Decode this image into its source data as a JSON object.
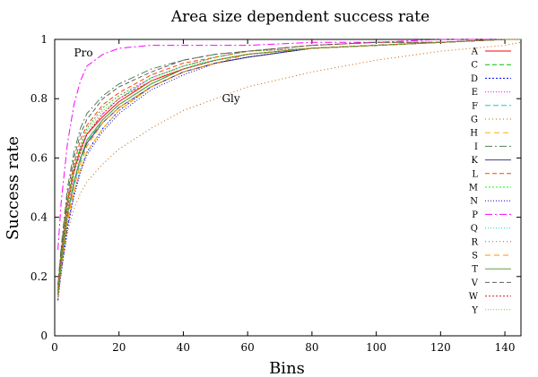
{
  "chart_data": {
    "type": "line",
    "title": "Area size dependent success rate",
    "xlabel": "Bins",
    "ylabel": "Success rate",
    "xlim": [
      0,
      145
    ],
    "ylim": [
      0,
      1
    ],
    "xticks": [
      0,
      20,
      40,
      60,
      80,
      100,
      120,
      140
    ],
    "yticks": [
      0,
      0.2,
      0.4,
      0.6,
      0.8,
      1
    ],
    "ytick_labels": [
      "0",
      "0.2",
      "0.4",
      "0.6",
      "0.8",
      "1"
    ],
    "legend_position": "right",
    "x": [
      1,
      2,
      4,
      6,
      8,
      10,
      15,
      20,
      30,
      40,
      50,
      60,
      80,
      100,
      120,
      140,
      145
    ],
    "series": [
      {
        "name": "A",
        "color": "#ff0000",
        "dash": "none",
        "values": [
          0.15,
          0.27,
          0.45,
          0.56,
          0.63,
          0.68,
          0.74,
          0.79,
          0.86,
          0.9,
          0.93,
          0.95,
          0.97,
          0.98,
          0.99,
          1.0,
          1.0
        ]
      },
      {
        "name": "C",
        "color": "#00c000",
        "dash": "5,3",
        "values": [
          0.14,
          0.24,
          0.4,
          0.52,
          0.6,
          0.66,
          0.73,
          0.78,
          0.85,
          0.9,
          0.93,
          0.95,
          0.97,
          0.98,
          0.99,
          1.0,
          1.0
        ]
      },
      {
        "name": "D",
        "color": "#0000ff",
        "dash": "2,2",
        "values": [
          0.12,
          0.22,
          0.37,
          0.48,
          0.56,
          0.62,
          0.7,
          0.76,
          0.84,
          0.89,
          0.92,
          0.94,
          0.97,
          0.98,
          0.99,
          1.0,
          1.0
        ]
      },
      {
        "name": "E",
        "color": "#ff00ff",
        "dash": "1,2",
        "values": [
          0.15,
          0.26,
          0.43,
          0.55,
          0.62,
          0.68,
          0.75,
          0.8,
          0.87,
          0.91,
          0.94,
          0.96,
          0.97,
          0.98,
          0.99,
          1.0,
          1.0
        ]
      },
      {
        "name": "F",
        "color": "#00d0d0",
        "dash": "6,3",
        "values": [
          0.13,
          0.24,
          0.4,
          0.51,
          0.59,
          0.65,
          0.73,
          0.78,
          0.85,
          0.9,
          0.93,
          0.95,
          0.97,
          0.98,
          0.99,
          1.0,
          1.0
        ]
      },
      {
        "name": "G",
        "color": "#c06000",
        "dash": "1,3",
        "values": [
          0.12,
          0.22,
          0.35,
          0.43,
          0.48,
          0.52,
          0.58,
          0.63,
          0.7,
          0.76,
          0.8,
          0.84,
          0.89,
          0.93,
          0.96,
          0.98,
          0.99
        ]
      },
      {
        "name": "H",
        "color": "#ffb000",
        "dash": "6,4",
        "values": [
          0.13,
          0.23,
          0.38,
          0.48,
          0.56,
          0.62,
          0.7,
          0.76,
          0.84,
          0.89,
          0.92,
          0.94,
          0.97,
          0.98,
          0.99,
          1.0,
          1.0
        ]
      },
      {
        "name": "I",
        "color": "#508050",
        "dash": "8,3,2,3",
        "values": [
          0.17,
          0.3,
          0.5,
          0.62,
          0.7,
          0.75,
          0.81,
          0.85,
          0.9,
          0.93,
          0.95,
          0.96,
          0.98,
          0.99,
          0.99,
          1.0,
          1.0
        ]
      },
      {
        "name": "K",
        "color": "#404080",
        "dash": "none",
        "values": [
          0.14,
          0.25,
          0.41,
          0.52,
          0.6,
          0.65,
          0.72,
          0.77,
          0.84,
          0.89,
          0.92,
          0.94,
          0.97,
          0.98,
          0.99,
          1.0,
          1.0
        ]
      },
      {
        "name": "L",
        "color": "#ff4000",
        "dash": "5,3",
        "values": [
          0.16,
          0.28,
          0.46,
          0.58,
          0.66,
          0.71,
          0.78,
          0.82,
          0.88,
          0.92,
          0.94,
          0.96,
          0.98,
          0.99,
          0.99,
          1.0,
          1.0
        ]
      },
      {
        "name": "M",
        "color": "#00ff00",
        "dash": "2,2",
        "values": [
          0.16,
          0.28,
          0.45,
          0.57,
          0.64,
          0.7,
          0.77,
          0.81,
          0.87,
          0.91,
          0.94,
          0.96,
          0.97,
          0.98,
          0.99,
          1.0,
          1.0
        ]
      },
      {
        "name": "N",
        "color": "#0000c0",
        "dash": "1,2",
        "values": [
          0.12,
          0.21,
          0.36,
          0.47,
          0.55,
          0.61,
          0.69,
          0.75,
          0.83,
          0.88,
          0.92,
          0.94,
          0.97,
          0.98,
          0.99,
          1.0,
          1.0
        ]
      },
      {
        "name": "P",
        "color": "#ff00ff",
        "dash": "8,3,2,3",
        "values": [
          0.29,
          0.45,
          0.65,
          0.78,
          0.86,
          0.91,
          0.95,
          0.97,
          0.98,
          0.98,
          0.98,
          0.98,
          0.99,
          0.99,
          1.0,
          1.0,
          1.0
        ]
      },
      {
        "name": "Q",
        "color": "#00e0e0",
        "dash": "1,2",
        "values": [
          0.15,
          0.26,
          0.44,
          0.56,
          0.63,
          0.69,
          0.76,
          0.8,
          0.87,
          0.91,
          0.93,
          0.95,
          0.97,
          0.98,
          0.99,
          1.0,
          1.0
        ]
      },
      {
        "name": "R",
        "color": "#a06060",
        "dash": "1,3",
        "values": [
          0.16,
          0.27,
          0.45,
          0.57,
          0.64,
          0.7,
          0.77,
          0.81,
          0.87,
          0.91,
          0.94,
          0.96,
          0.97,
          0.98,
          0.99,
          1.0,
          1.0
        ]
      },
      {
        "name": "S",
        "color": "#ff9000",
        "dash": "6,4",
        "values": [
          0.13,
          0.23,
          0.39,
          0.5,
          0.58,
          0.64,
          0.72,
          0.77,
          0.84,
          0.89,
          0.92,
          0.95,
          0.97,
          0.98,
          0.99,
          1.0,
          1.0
        ]
      },
      {
        "name": "T",
        "color": "#60a040",
        "dash": "none",
        "values": [
          0.14,
          0.24,
          0.41,
          0.52,
          0.6,
          0.66,
          0.73,
          0.78,
          0.85,
          0.9,
          0.93,
          0.95,
          0.97,
          0.98,
          0.99,
          1.0,
          1.0
        ]
      },
      {
        "name": "V",
        "color": "#606060",
        "dash": "5,3",
        "values": [
          0.17,
          0.29,
          0.48,
          0.6,
          0.68,
          0.73,
          0.8,
          0.84,
          0.89,
          0.93,
          0.95,
          0.96,
          0.98,
          0.99,
          0.99,
          1.0,
          1.0
        ]
      },
      {
        "name": "W",
        "color": "#e02020",
        "dash": "2,2",
        "values": [
          0.15,
          0.26,
          0.43,
          0.55,
          0.62,
          0.68,
          0.75,
          0.8,
          0.86,
          0.9,
          0.93,
          0.95,
          0.97,
          0.98,
          0.99,
          1.0,
          1.0
        ]
      },
      {
        "name": "Y",
        "color": "#60e020",
        "dash": "1,2",
        "values": [
          0.15,
          0.26,
          0.44,
          0.56,
          0.63,
          0.69,
          0.76,
          0.8,
          0.86,
          0.91,
          0.93,
          0.95,
          0.97,
          0.98,
          0.99,
          1.0,
          1.0
        ]
      }
    ],
    "annotations": [
      {
        "text": "Pro",
        "x": 6,
        "y": 0.955
      },
      {
        "text": "Gly",
        "x": 52,
        "y": 0.8
      }
    ]
  }
}
